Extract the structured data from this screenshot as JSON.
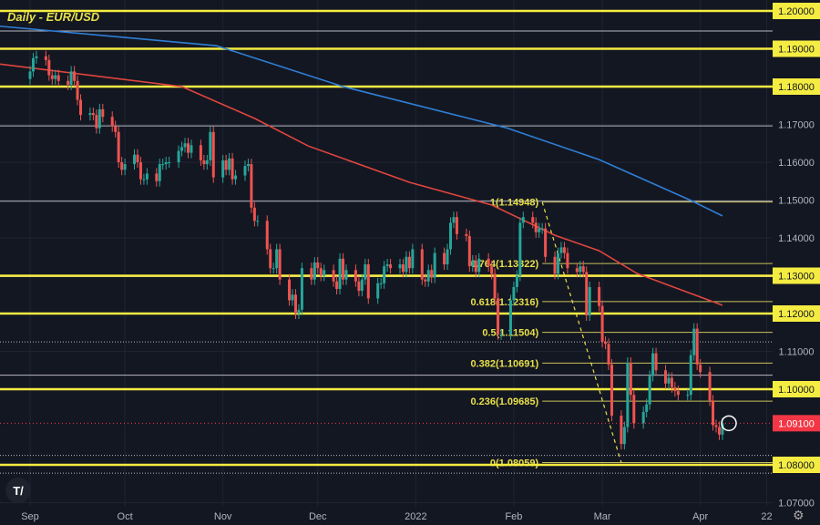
{
  "chart_data": {
    "type": "candlestick",
    "title": "Daily - EUR/USD",
    "ylim": [
      1.065,
      1.203
    ],
    "y_ticks": [
      "1.20000",
      "1.19000",
      "1.18000",
      "1.17000",
      "1.16000",
      "1.15000",
      "1.14000",
      "1.13000",
      "1.12000",
      "1.11000",
      "1.10000",
      "1.08000",
      "1.07000"
    ],
    "highlighted_ticks": [
      "1.20000",
      "1.19000",
      "1.18000",
      "1.13000",
      "1.12000",
      "1.10000",
      "1.08000"
    ],
    "x_ticks": [
      {
        "label": "Sep",
        "date": "2021-09-01"
      },
      {
        "label": "Oct",
        "date": "2021-10-01"
      },
      {
        "label": "Nov",
        "date": "2021-11-01"
      },
      {
        "label": "Dec",
        "date": "2021-12-01"
      },
      {
        "label": "2022",
        "date": "2022-01-01"
      },
      {
        "label": "Feb",
        "date": "2022-02-01"
      },
      {
        "label": "Mar",
        "date": "2022-03-01"
      },
      {
        "label": "Apr",
        "date": "2022-04-01"
      },
      {
        "label": "22",
        "date": "2022-04-22"
      }
    ],
    "x_range": [
      "2021-08-22",
      "2022-04-25"
    ],
    "last_price": {
      "label": "1.09100",
      "value": 1.091
    },
    "weeks": [
      {
        "start": "2021-09-01",
        "closes": [
          1.184,
          1.1875,
          1.188
        ]
      },
      {
        "start": "2021-09-06",
        "closes": [
          1.187,
          1.183,
          1.182,
          1.183,
          1.1815
        ]
      },
      {
        "start": "2021-09-13",
        "closes": [
          1.1805,
          1.184,
          1.1815,
          1.1765,
          1.1725
        ]
      },
      {
        "start": "2021-09-20",
        "closes": [
          1.173,
          1.1725,
          1.169,
          1.174,
          1.172
        ]
      },
      {
        "start": "2021-09-27",
        "closes": [
          1.1695,
          1.168,
          1.16,
          1.158,
          1.1595
        ]
      },
      {
        "start": "2021-10-04",
        "closes": [
          1.162,
          1.16,
          1.1555,
          1.1555,
          1.157
        ]
      },
      {
        "start": "2021-10-11",
        "closes": [
          1.155,
          1.1595,
          1.1595,
          1.16,
          1.16
        ]
      },
      {
        "start": "2021-10-18",
        "closes": [
          1.163,
          1.164,
          1.165,
          1.1625,
          1.1645
        ]
      },
      {
        "start": "2021-10-25",
        "closes": [
          1.1605,
          1.1595,
          1.1605,
          1.168,
          1.156
        ]
      },
      {
        "start": "2021-11-01",
        "closes": [
          1.1605,
          1.158,
          1.161,
          1.1555,
          1.1565
        ]
      },
      {
        "start": "2021-11-08",
        "closes": [
          1.159,
          1.1595,
          1.148,
          1.1445,
          1.1445
        ]
      },
      {
        "start": "2021-11-15",
        "closes": [
          1.137,
          1.132,
          1.132,
          1.137,
          1.129
        ]
      },
      {
        "start": "2021-11-22",
        "closes": [
          1.1235,
          1.125,
          1.12,
          1.121,
          1.132
        ]
      },
      {
        "start": "2021-11-29",
        "closes": [
          1.129,
          1.1335,
          1.132,
          1.13,
          1.1315
        ]
      },
      {
        "start": "2021-12-06",
        "closes": [
          1.1285,
          1.1265,
          1.1345,
          1.129,
          1.1315
        ]
      },
      {
        "start": "2021-12-13",
        "closes": [
          1.1285,
          1.126,
          1.129,
          1.133,
          1.124
        ]
      },
      {
        "start": "2021-12-20",
        "closes": [
          1.128,
          1.128,
          1.1325,
          1.133,
          1.132
        ]
      },
      {
        "start": "2021-12-27",
        "closes": [
          1.133,
          1.131,
          1.135,
          1.132,
          1.137
        ]
      },
      {
        "start": "2022-01-03",
        "closes": [
          1.129,
          1.1285,
          1.1315,
          1.1295,
          1.136
        ]
      },
      {
        "start": "2022-01-10",
        "closes": [
          1.133,
          1.137,
          1.144,
          1.1455,
          1.141
        ]
      },
      {
        "start": "2022-01-17",
        "closes": [
          1.1405,
          1.1325,
          1.134,
          1.131,
          1.1345
        ]
      },
      {
        "start": "2022-01-24",
        "closes": [
          1.1325,
          1.1305,
          1.124,
          1.1145,
          1.1145
        ]
      },
      {
        "start": "2022-01-31",
        "closes": [
          1.1235,
          1.127,
          1.13,
          1.144,
          1.1455
        ]
      },
      {
        "start": "2022-02-07",
        "closes": [
          1.144,
          1.1415,
          1.1425,
          1.1425,
          1.135
        ]
      },
      {
        "start": "2022-02-14",
        "closes": [
          1.1305,
          1.136,
          1.1375,
          1.136,
          1.132
        ]
      },
      {
        "start": "2022-02-21",
        "closes": [
          1.131,
          1.1325,
          1.131,
          1.1195,
          1.127
        ]
      },
      {
        "start": "2022-02-28",
        "closes": [
          1.122,
          1.1125,
          1.112,
          1.1065,
          1.093
        ]
      },
      {
        "start": "2022-03-07",
        "closes": [
          1.0855,
          1.09,
          1.107,
          1.0985,
          1.091
        ]
      },
      {
        "start": "2022-03-14",
        "closes": [
          1.094,
          1.096,
          1.1035,
          1.1095,
          1.105
        ]
      },
      {
        "start": "2022-03-21",
        "closes": [
          1.1015,
          1.103,
          1.1005,
          1.0995,
          1.0985
        ]
      },
      {
        "start": "2022-03-28",
        "closes": [
          1.0985,
          1.109,
          1.116,
          1.1065,
          1.1045
        ]
      },
      {
        "start": "2022-04-04",
        "closes": [
          1.097,
          1.0905,
          1.09,
          1.088,
          1.091
        ]
      }
    ],
    "moving_averages": [
      {
        "color": "#2f7fd6",
        "points": [
          [
            "2021-08-22",
            1.196
          ],
          [
            "2021-10-30",
            1.1908
          ],
          [
            "2021-12-09",
            1.18
          ],
          [
            "2022-01-30",
            1.169
          ],
          [
            "2022-02-28",
            1.1607
          ],
          [
            "2022-03-29",
            1.1499
          ],
          [
            "2022-04-08",
            1.1458
          ]
        ]
      },
      {
        "color": "#e0463e",
        "points": [
          [
            "2021-08-22",
            1.186
          ],
          [
            "2021-10-19",
            1.18
          ],
          [
            "2021-11-11",
            1.1716
          ],
          [
            "2021-11-28",
            1.1643
          ],
          [
            "2021-12-30",
            1.1547
          ],
          [
            "2022-01-25",
            1.1487
          ],
          [
            "2022-02-14",
            1.1407
          ],
          [
            "2022-02-28",
            1.1366
          ],
          [
            "2022-03-12",
            1.1306
          ],
          [
            "2022-03-29",
            1.1253
          ],
          [
            "2022-04-08",
            1.1222
          ]
        ]
      }
    ],
    "horizontal_levels_major": [
      1.2,
      1.19,
      1.18,
      1.13,
      1.12,
      1.1,
      1.08
    ],
    "horizontal_levels_minor": [
      1.1947,
      1.1696,
      1.1497,
      1.1298,
      1.1037
    ],
    "dotted_levels": [
      1.1125,
      1.0825,
      1.0778
    ],
    "fibonacci": {
      "from": [
        "2022-02-10",
        1.14948
      ],
      "to": [
        "2022-03-07",
        1.08059
      ],
      "levels": [
        {
          "label": "1(1.14948)",
          "value": 1.14948
        },
        {
          "label": "0.764(1.13322)",
          "value": 1.13322
        },
        {
          "label": "0.618(1.12316)",
          "value": 1.12316
        },
        {
          "label": "0.5(1.11504)",
          "value": 1.11504
        },
        {
          "label": "0.382(1.10691)",
          "value": 1.10691
        },
        {
          "label": "0.236(1.09685)",
          "value": 1.09685
        },
        {
          "label": "0(1.08059)",
          "value": 1.08059
        }
      ]
    },
    "colors": {
      "background": "#131722",
      "up": "#26a69a",
      "down": "#ef5350",
      "level": "#f5ec42",
      "fib": "#c9c15a",
      "last_price": "#f23645"
    }
  },
  "branding": {
    "logo_text": "TV"
  },
  "icons": {
    "settings": "gear-icon"
  }
}
